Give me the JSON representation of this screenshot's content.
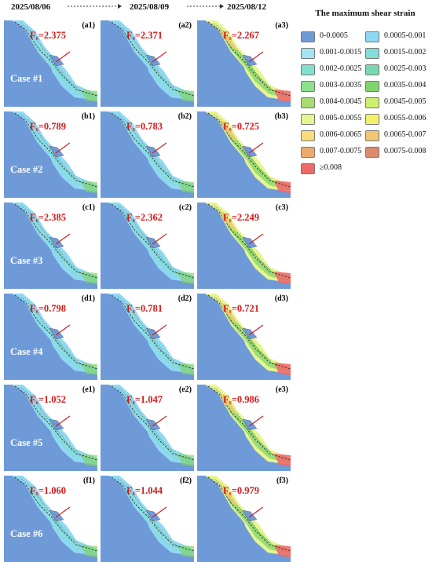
{
  "header": {
    "dates": [
      "2025/08/06",
      "2025/08/09",
      "2025/08/12"
    ]
  },
  "legend": {
    "title": "The maximum shear strain",
    "items": [
      {
        "label": "0-0.0005",
        "color": "#6f9ad8"
      },
      {
        "label": "0.0005-0.001",
        "color": "#8fd8f3"
      },
      {
        "label": "0.001-0.0015",
        "color": "#a4e3f2"
      },
      {
        "label": "0.0015-0.002",
        "color": "#86dcd8"
      },
      {
        "label": "0.002-0.0025",
        "color": "#7fe0cf"
      },
      {
        "label": "0.0025-0.003",
        "color": "#78d9b0"
      },
      {
        "label": "0.003-0.0035",
        "color": "#8ee08c"
      },
      {
        "label": "0.0035-0.004",
        "color": "#80d46e"
      },
      {
        "label": "0.004-0.0045",
        "color": "#a8dc70"
      },
      {
        "label": "0.0045-0.005",
        "color": "#ccef6e"
      },
      {
        "label": "0.005-0.0055",
        "color": "#e6f58e"
      },
      {
        "label": "0.0055-0.006",
        "color": "#f5f06c"
      },
      {
        "label": "0.006-0.0065",
        "color": "#f6dd7a"
      },
      {
        "label": "0.0065-0.007",
        "color": "#f2c674"
      },
      {
        "label": "0.007-0.0075",
        "color": "#eeaa6c"
      },
      {
        "label": "0.0075-0.008",
        "color": "#db8a6c"
      },
      {
        "label": "≥0.008",
        "color": "#ee6a6a"
      }
    ]
  },
  "panels": [
    [
      {
        "label": "(a1)",
        "fs": "=2.375",
        "case": "Case #1"
      },
      {
        "label": "(a2)",
        "fs": "=2.371"
      },
      {
        "label": "(a3)",
        "fs": "=2.267"
      }
    ],
    [
      {
        "label": "(b1)",
        "fs": "=0.789",
        "case": "Case #2"
      },
      {
        "label": "(b2)",
        "fs": "=0.783"
      },
      {
        "label": "(b3)",
        "fs": "=0.725"
      }
    ],
    [
      {
        "label": "(c1)",
        "fs": "=2.385",
        "case": "Case #3"
      },
      {
        "label": "(c2)",
        "fs": "=2.362"
      },
      {
        "label": "(c3)",
        "fs": "=2.249"
      }
    ],
    [
      {
        "label": "(d1)",
        "fs": "=0.798",
        "case": "Case #4"
      },
      {
        "label": "(d2)",
        "fs": "=0.781"
      },
      {
        "label": "(d3)",
        "fs": "=0.721"
      }
    ],
    [
      {
        "label": "(e1)",
        "fs": "=1.052",
        "case": "Case #5"
      },
      {
        "label": "(e2)",
        "fs": "=1.047"
      },
      {
        "label": "(e3)",
        "fs": "=0.986"
      }
    ],
    [
      {
        "label": "(f1)",
        "fs": "=1.060",
        "case": "Case #6"
      },
      {
        "label": "(f2)",
        "fs": "=1.044"
      },
      {
        "label": "(f3)",
        "fs": "=0.979"
      }
    ]
  ],
  "fs_symbol": "F",
  "fs_subscript": "s"
}
